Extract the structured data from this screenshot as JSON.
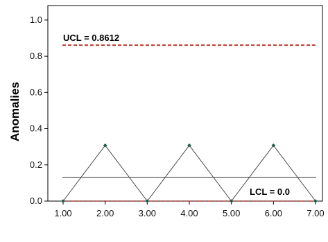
{
  "chart_data": {
    "type": "line",
    "title": "",
    "xlabel": "",
    "ylabel": "Anomalies",
    "x": [
      1,
      2,
      3,
      4,
      5,
      6,
      7
    ],
    "series": [
      {
        "values": [
          0.0,
          0.3077,
          0.0,
          0.3077,
          0.0,
          0.3077,
          0.0
        ],
        "color": "#4a4a4a",
        "marker_color": "#1f5c4a"
      }
    ],
    "center_line": {
      "value": 0.1319,
      "color": "#333333"
    },
    "ucl": {
      "value": 0.8612,
      "label": "UCL = 0.8612",
      "color": "#c0392b",
      "style": "dashed"
    },
    "lcl": {
      "value": 0.0,
      "label": "LCL = 0.0",
      "color": "#c0392b",
      "style": "dashed"
    },
    "xlim": [
      1,
      7
    ],
    "ylim": [
      0,
      1.08
    ],
    "x_ticks": [
      1,
      2,
      3,
      4,
      5,
      6,
      7
    ],
    "x_tick_labels": [
      "1.00",
      "2.00",
      "3.00",
      "4.00",
      "5.00",
      "6.00",
      "7.00"
    ],
    "y_ticks": [
      0.0,
      0.2,
      0.4,
      0.6,
      0.8,
      1.0
    ],
    "y_tick_labels": [
      "0.0",
      "0.2",
      "0.4",
      "0.6",
      "0.8",
      "1.0"
    ],
    "grid": false,
    "legend": "none"
  }
}
